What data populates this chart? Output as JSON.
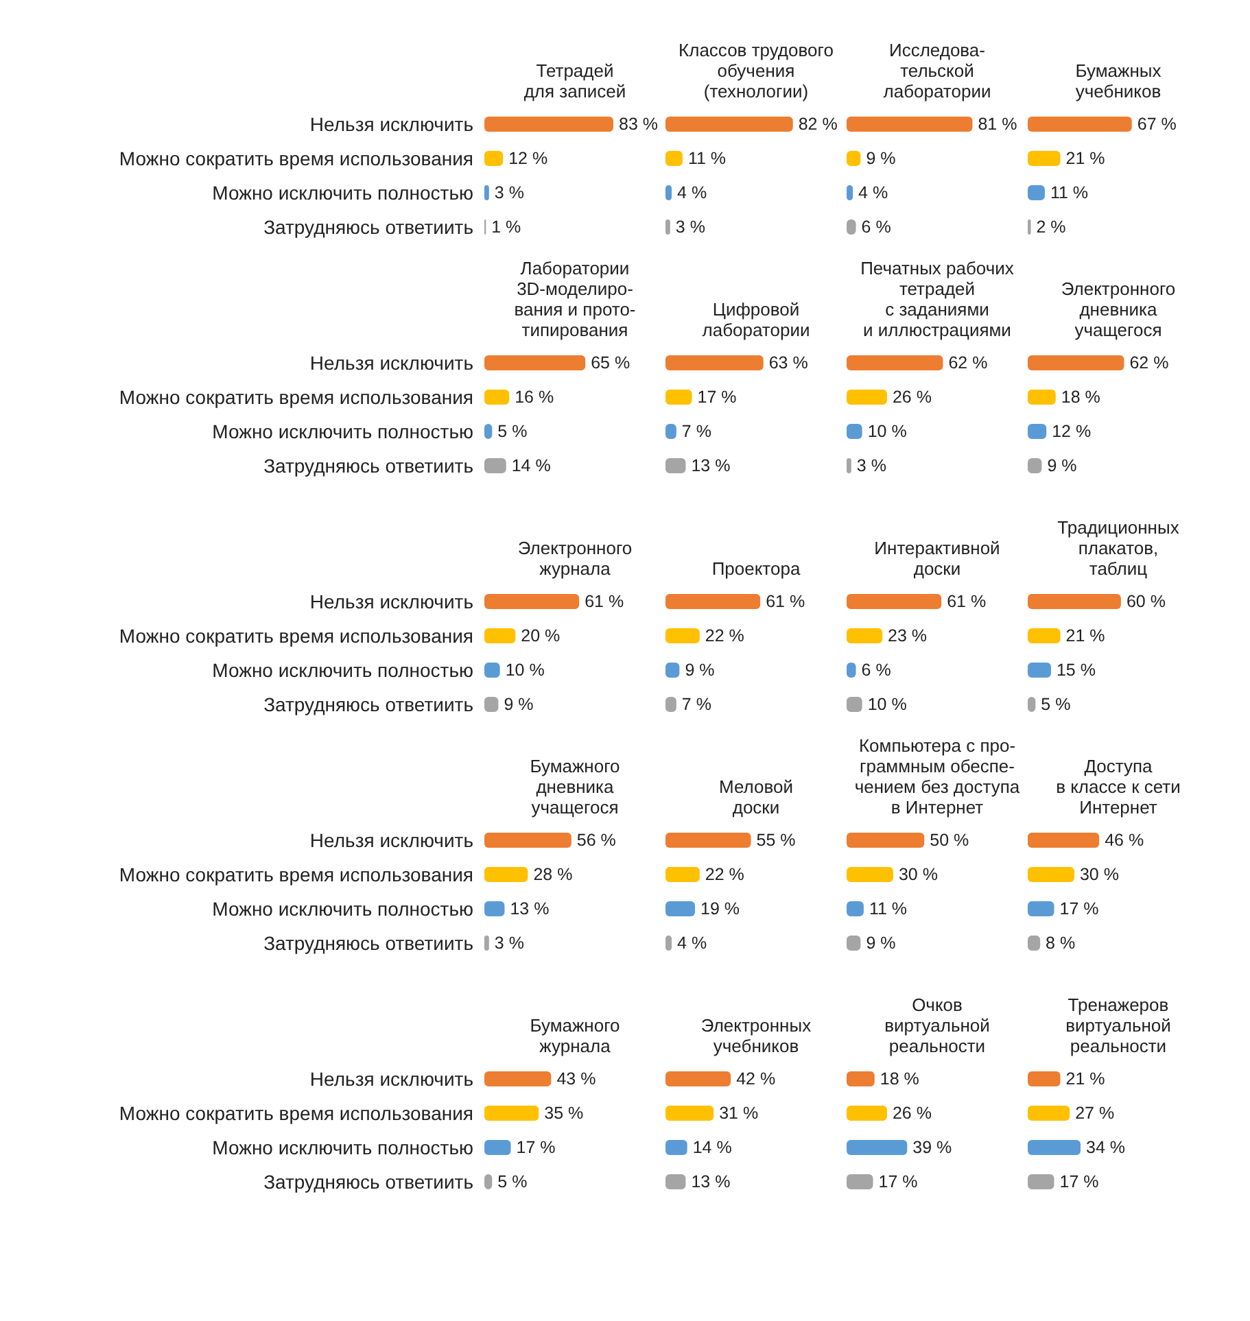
{
  "chart_data": [
    {
      "type": "bar",
      "orientation": "horizontal",
      "title": "Тетрадей\nдля записей",
      "categories": [
        "Нельзя исключить",
        "Можно сократить время использования",
        "Можно исключить полностью",
        "Затрудняюсь ответиить"
      ],
      "values": [
        83,
        12,
        3,
        1
      ],
      "value_labels": [
        "83 %",
        "12 %",
        "3 %",
        "1 %"
      ],
      "colors": [
        "#ed7d31",
        "#ffc000",
        "#5b9bd5",
        "#a5a5a5"
      ],
      "tick_labels": "y"
    },
    {
      "type": "bar",
      "orientation": "horizontal",
      "title": "Классов трудового\nобучения\n(технологии)",
      "categories": [
        null,
        null,
        null,
        null
      ],
      "values": [
        82,
        11,
        4,
        3
      ],
      "value_labels": [
        "82 %",
        "11 %",
        "4 %",
        "3 %"
      ],
      "colors": [
        "#ed7d31",
        "#ffc000",
        "#5b9bd5",
        "#a5a5a5"
      ],
      "tick_labels": false
    },
    {
      "type": "bar",
      "orientation": "horizontal",
      "title": "Исследова-\nтельской\nлаборатории",
      "categories": [
        null,
        null,
        null,
        null
      ],
      "values": [
        81,
        9,
        4,
        6
      ],
      "value_labels": [
        "81 %",
        "9 %",
        "4 %",
        "6 %"
      ],
      "colors": [
        "#ed7d31",
        "#ffc000",
        "#5b9bd5",
        "#a5a5a5"
      ],
      "tick_labels": false
    },
    {
      "type": "bar",
      "orientation": "horizontal",
      "title": "Бумажных\nучебников",
      "categories": [
        null,
        null,
        null,
        null
      ],
      "values": [
        67,
        21,
        11,
        2
      ],
      "value_labels": [
        "67 %",
        "21 %",
        "11 %",
        "2 %"
      ],
      "colors": [
        "#ed7d31",
        "#ffc000",
        "#5b9bd5",
        "#a5a5a5"
      ],
      "tick_labels": false
    },
    {
      "type": "bar",
      "orientation": "horizontal",
      "title": "Лаборатории\n3D-моделиро-\nвания и прото-\nтипирования",
      "categories": [
        "Нельзя исключить",
        "Можно сократить время использования",
        "Можно исключить полностью",
        "Затрудняюсь ответиить"
      ],
      "values": [
        65,
        16,
        5,
        14
      ],
      "value_labels": [
        "65 %",
        "16 %",
        "5 %",
        "14 %"
      ],
      "colors": [
        "#ed7d31",
        "#ffc000",
        "#5b9bd5",
        "#a5a5a5"
      ],
      "tick_labels": "y"
    },
    {
      "type": "bar",
      "orientation": "horizontal",
      "title": "Цифровой\nлаборатории",
      "categories": [
        null,
        null,
        null,
        null
      ],
      "values": [
        63,
        17,
        7,
        13
      ],
      "value_labels": [
        "63 %",
        "17 %",
        "7 %",
        "13 %"
      ],
      "colors": [
        "#ed7d31",
        "#ffc000",
        "#5b9bd5",
        "#a5a5a5"
      ],
      "tick_labels": false
    },
    {
      "type": "bar",
      "orientation": "horizontal",
      "title": "Печатных рабочих\nтетрадей\nс заданиями\nи иллюстрациями",
      "categories": [
        null,
        null,
        null,
        null
      ],
      "values": [
        62,
        26,
        10,
        3
      ],
      "value_labels": [
        "62 %",
        "26 %",
        "10 %",
        "3 %"
      ],
      "colors": [
        "#ed7d31",
        "#ffc000",
        "#5b9bd5",
        "#a5a5a5"
      ],
      "tick_labels": false
    },
    {
      "type": "bar",
      "orientation": "horizontal",
      "title": "Электронного\nдневника\nучащегося",
      "categories": [
        null,
        null,
        null,
        null
      ],
      "values": [
        62,
        18,
        12,
        9
      ],
      "value_labels": [
        "62 %",
        "18 %",
        "12 %",
        "9 %"
      ],
      "colors": [
        "#ed7d31",
        "#ffc000",
        "#5b9bd5",
        "#a5a5a5"
      ],
      "tick_labels": false
    },
    {
      "type": "bar",
      "orientation": "horizontal",
      "title": "Электронного\nжурнала",
      "categories": [
        "Нельзя исключить",
        "Можно сократить время использования",
        "Можно исключить полностью",
        "Затрудняюсь ответиить"
      ],
      "values": [
        61,
        20,
        10,
        9
      ],
      "value_labels": [
        "61 %",
        "20 %",
        "10 %",
        "9 %"
      ],
      "colors": [
        "#ed7d31",
        "#ffc000",
        "#5b9bd5",
        "#a5a5a5"
      ],
      "tick_labels": "y"
    },
    {
      "type": "bar",
      "orientation": "horizontal",
      "title": "Проектора",
      "categories": [
        null,
        null,
        null,
        null
      ],
      "values": [
        61,
        22,
        9,
        7
      ],
      "value_labels": [
        "61 %",
        "22 %",
        "9 %",
        "7 %"
      ],
      "colors": [
        "#ed7d31",
        "#ffc000",
        "#5b9bd5",
        "#a5a5a5"
      ],
      "tick_labels": false
    },
    {
      "type": "bar",
      "orientation": "horizontal",
      "title": "Интерактивной\nдоски",
      "categories": [
        null,
        null,
        null,
        null
      ],
      "values": [
        61,
        23,
        6,
        10
      ],
      "value_labels": [
        "61 %",
        "23 %",
        "6 %",
        "10 %"
      ],
      "colors": [
        "#ed7d31",
        "#ffc000",
        "#5b9bd5",
        "#a5a5a5"
      ],
      "tick_labels": false
    },
    {
      "type": "bar",
      "orientation": "horizontal",
      "title": "Традиционных\nплакатов,\nтаблиц",
      "categories": [
        null,
        null,
        null,
        null
      ],
      "values": [
        60,
        21,
        15,
        5
      ],
      "value_labels": [
        "60 %",
        "21 %",
        "15 %",
        "5 %"
      ],
      "colors": [
        "#ed7d31",
        "#ffc000",
        "#5b9bd5",
        "#a5a5a5"
      ],
      "tick_labels": false
    },
    {
      "type": "bar",
      "orientation": "horizontal",
      "title": "Бумажного\nдневника\nучащегося",
      "categories": [
        "Нельзя исключить",
        "Можно сократить время использования",
        "Можно исключить полностью",
        "Затрудняюсь ответиить"
      ],
      "values": [
        56,
        28,
        13,
        3
      ],
      "value_labels": [
        "56 %",
        "28 %",
        "13 %",
        "3 %"
      ],
      "colors": [
        "#ed7d31",
        "#ffc000",
        "#5b9bd5",
        "#a5a5a5"
      ],
      "tick_labels": "y"
    },
    {
      "type": "bar",
      "orientation": "horizontal",
      "title": "Меловой\nдоски",
      "categories": [
        null,
        null,
        null,
        null
      ],
      "values": [
        55,
        22,
        19,
        4
      ],
      "value_labels": [
        "55 %",
        "22 %",
        "19 %",
        "4 %"
      ],
      "colors": [
        "#ed7d31",
        "#ffc000",
        "#5b9bd5",
        "#a5a5a5"
      ],
      "tick_labels": false
    },
    {
      "type": "bar",
      "orientation": "horizontal",
      "title": "Компьютера с про-\nграммным обеспе-\nчением без доступа\nв Интернет",
      "categories": [
        null,
        null,
        null,
        null
      ],
      "values": [
        50,
        30,
        11,
        9
      ],
      "value_labels": [
        "50 %",
        "30 %",
        "11 %",
        "9 %"
      ],
      "colors": [
        "#ed7d31",
        "#ffc000",
        "#5b9bd5",
        "#a5a5a5"
      ],
      "tick_labels": false
    },
    {
      "type": "bar",
      "orientation": "horizontal",
      "title": "Доступа\nв классе к сети\nИнтернет",
      "categories": [
        null,
        null,
        null,
        null
      ],
      "values": [
        46,
        30,
        17,
        8
      ],
      "value_labels": [
        "46 %",
        "30 %",
        "17 %",
        "8 %"
      ],
      "colors": [
        "#ed7d31",
        "#ffc000",
        "#5b9bd5",
        "#a5a5a5"
      ],
      "tick_labels": false
    },
    {
      "type": "bar",
      "orientation": "horizontal",
      "title": "Бумажного\nжурнала",
      "categories": [
        "Нельзя исключить",
        "Можно сократить время использования",
        "Можно исключить полностью",
        "Затрудняюсь ответиить"
      ],
      "values": [
        43,
        35,
        17,
        5
      ],
      "value_labels": [
        "43 %",
        "35 %",
        "17 %",
        "5 %"
      ],
      "colors": [
        "#ed7d31",
        "#ffc000",
        "#5b9bd5",
        "#a5a5a5"
      ],
      "tick_labels": "y"
    },
    {
      "type": "bar",
      "orientation": "horizontal",
      "title": "Электронных\nучебников",
      "categories": [
        null,
        null,
        null,
        null
      ],
      "values": [
        42,
        31,
        14,
        13
      ],
      "value_labels": [
        "42 %",
        "31 %",
        "14 %",
        "13 %"
      ],
      "colors": [
        "#ed7d31",
        "#ffc000",
        "#5b9bd5",
        "#a5a5a5"
      ],
      "tick_labels": false
    },
    {
      "type": "bar",
      "orientation": "horizontal",
      "title": "Очков\nвиртуальной\nреальности",
      "categories": [
        null,
        null,
        null,
        null
      ],
      "values": [
        18,
        26,
        39,
        17
      ],
      "value_labels": [
        "18 %",
        "26 %",
        "39 %",
        "17 %"
      ],
      "colors": [
        "#ed7d31",
        "#ffc000",
        "#5b9bd5",
        "#a5a5a5"
      ],
      "tick_labels": false
    },
    {
      "type": "bar",
      "orientation": "horizontal",
      "title": "Тренажеров\nвиртуальной\nреальности",
      "categories": [
        null,
        null,
        null,
        null
      ],
      "values": [
        21,
        27,
        34,
        17
      ],
      "value_labels": [
        "21 %",
        "27 %",
        "34 %",
        "17 %"
      ],
      "colors": [
        "#ed7d31",
        "#ffc000",
        "#5b9bd5",
        "#a5a5a5"
      ],
      "tick_labels": false
    }
  ]
}
